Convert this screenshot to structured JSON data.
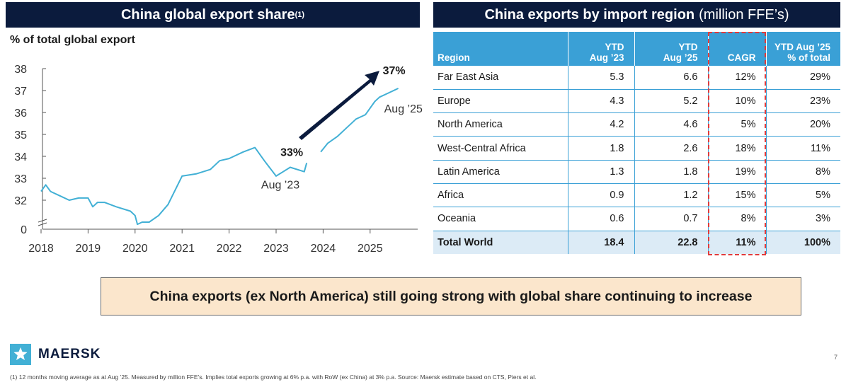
{
  "left_panel": {
    "title": "China global export share",
    "title_sup": "(1)",
    "y_caption": "% of total global export"
  },
  "right_panel": {
    "title": "China exports by import region",
    "title_suffix": "(million FFE’s)"
  },
  "chart_data": {
    "type": "line",
    "title": "China global export share",
    "ylabel": "% of total global export",
    "yticks": [
      "38",
      "37",
      "36",
      "35",
      "34",
      "33",
      "32",
      "0"
    ],
    "xticks": [
      "2018",
      "2019",
      "2020",
      "2021",
      "2022",
      "2023",
      "2024",
      "2025"
    ],
    "ylim": [
      31.4,
      38
    ],
    "axis_break": true,
    "series": [
      {
        "name": "China global export share",
        "x": [
          2018.0,
          2018.1,
          2018.2,
          2018.4,
          2018.6,
          2018.8,
          2019.0,
          2019.1,
          2019.2,
          2019.35,
          2019.6,
          2019.9,
          2020.0,
          2020.05,
          2020.15,
          2020.3,
          2020.5,
          2020.7,
          2021.0,
          2021.3,
          2021.6,
          2021.8,
          2022.0,
          2022.3,
          2022.55,
          2022.75,
          2023.0,
          2023.15,
          2023.3,
          2023.6,
          2023.65
        ],
        "y": [
          32.4,
          32.7,
          32.4,
          32.2,
          32.0,
          32.1,
          32.1,
          31.7,
          31.9,
          31.9,
          31.7,
          31.5,
          31.3,
          30.9,
          31.0,
          31.0,
          31.3,
          31.8,
          33.1,
          33.2,
          33.4,
          33.8,
          33.9,
          34.2,
          34.4,
          33.8,
          33.1,
          33.3,
          33.5,
          33.3,
          33.7
        ],
        "color": "#42b0d5"
      },
      {
        "name": "China global export share (continued)",
        "x": [
          2023.95,
          2024.1,
          2024.3,
          2024.5,
          2024.7,
          2024.9,
          2025.0,
          2025.1,
          2025.2,
          2025.4,
          2025.6
        ],
        "y": [
          34.2,
          34.6,
          34.9,
          35.3,
          35.7,
          35.9,
          36.2,
          36.5,
          36.7,
          36.9,
          37.1
        ],
        "color": "#42b0d5"
      }
    ],
    "annotations": {
      "start_value": "33%",
      "start_label": "Aug ’23",
      "end_value": "37%",
      "end_label": "Aug ’25"
    },
    "colors": {
      "line": "#42b0d5",
      "arrow": "#0b1b3d"
    }
  },
  "table": {
    "headers": {
      "region": "Region",
      "ytd23_top": "YTD",
      "ytd23_bottom": "Aug ’23",
      "ytd25_top": "YTD",
      "ytd25_bottom": "Aug ’25",
      "cagr": "CAGR",
      "share_top": "YTD Aug ’25",
      "share_bottom": "% of total"
    },
    "rows": [
      {
        "region": "Far East Asia",
        "ytd23": "5.3",
        "ytd25": "6.6",
        "cagr": "12%",
        "share": "29%"
      },
      {
        "region": "Europe",
        "ytd23": "4.3",
        "ytd25": "5.2",
        "cagr": "10%",
        "share": "23%"
      },
      {
        "region": "North America",
        "ytd23": "4.2",
        "ytd25": "4.6",
        "cagr": "5%",
        "share": "20%"
      },
      {
        "region": "West-Central Africa",
        "ytd23": "1.8",
        "ytd25": "2.6",
        "cagr": "18%",
        "share": "11%"
      },
      {
        "region": "Latin America",
        "ytd23": "1.3",
        "ytd25": "1.8",
        "cagr": "19%",
        "share": "8%"
      },
      {
        "region": "Africa",
        "ytd23": "0.9",
        "ytd25": "1.2",
        "cagr": "15%",
        "share": "5%"
      },
      {
        "region": "Oceania",
        "ytd23": "0.6",
        "ytd25": "0.7",
        "cagr": "8%",
        "share": "3%"
      }
    ],
    "total": {
      "region": "Total World",
      "ytd23": "18.4",
      "ytd25": "22.8",
      "cagr": "11%",
      "share": "100%"
    },
    "colors": {
      "header": "#3aa0d6",
      "total_row": "#dcebf6",
      "cagr_highlight": "#e23b3b"
    }
  },
  "callout": "China exports (ex North America) still going strong with global share continuing to increase",
  "brand": {
    "name": "MAERSK",
    "icon": "star-icon",
    "color": "#42b0d5"
  },
  "page_number": "7",
  "footnote": "(1) 12 months moving average as at Aug ’25. Measured by million FFE’s. Implies total exports growing at 6% p.a. with RoW (ex China) at 3% p.a. Source: Maersk estimate based on CTS, Piers et al."
}
